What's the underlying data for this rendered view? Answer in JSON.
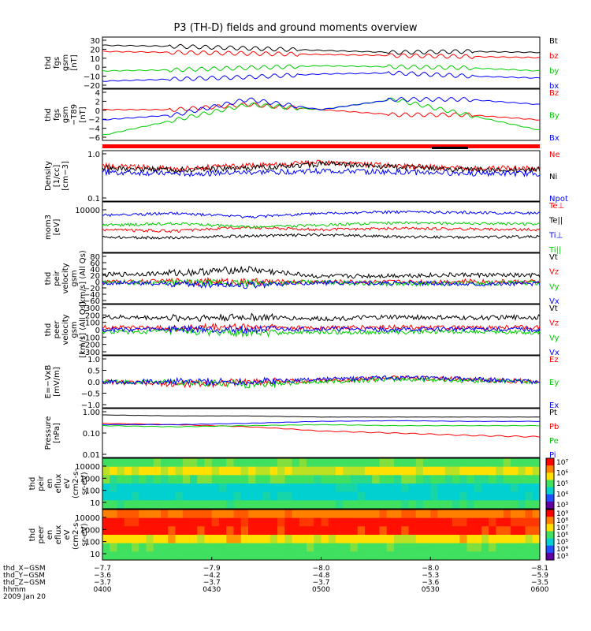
{
  "title": "P3 (TH-D) fields and ground moments overview",
  "colors": {
    "black": "#000000",
    "red": "#ff0000",
    "green": "#00cc00",
    "blue": "#0000ff"
  },
  "chart_data": [
    {
      "id": "fgs",
      "type": "line",
      "ylabel": [
        "thd",
        "fgs",
        "gsm",
        "[nT]"
      ],
      "yticks": [
        "30",
        "20",
        "10",
        "0",
        "−10",
        "−20"
      ],
      "ylim": [
        -20,
        30
      ],
      "legend": [
        {
          "name": "Bt",
          "color": "black"
        },
        {
          "name": "bz",
          "color": "red"
        },
        {
          "name": "by",
          "color": "green"
        },
        {
          "name": "bx",
          "color": "blue"
        }
      ],
      "series": [
        {
          "name": "Bt",
          "levels": [
            22,
            21,
            19,
            17,
            15,
            16,
            15
          ]
        },
        {
          "name": "bz",
          "levels": [
            16,
            15,
            14,
            13,
            12,
            11,
            10
          ]
        },
        {
          "name": "by",
          "levels": [
            -3,
            -2,
            0,
            2,
            1,
            0,
            -3
          ]
        },
        {
          "name": "bx",
          "levels": [
            -13,
            -11,
            -9,
            -6,
            -5,
            -8,
            -10
          ]
        }
      ]
    },
    {
      "id": "t89",
      "type": "line",
      "ylabel": [
        "thd",
        "fgs",
        "gsm",
        "−T89",
        "[nT]"
      ],
      "yticks": [
        "4",
        "2",
        "0",
        "−2",
        "−4",
        "−6"
      ],
      "ylim": [
        -6,
        4
      ],
      "legend": [
        {
          "name": "Bz",
          "color": "red"
        },
        {
          "name": "By",
          "color": "green"
        },
        {
          "name": "Bx",
          "color": "blue"
        }
      ],
      "series": [
        {
          "name": "Bz",
          "levels": [
            0,
            0,
            1,
            0,
            -1,
            -1,
            -2
          ]
        },
        {
          "name": "By",
          "levels": [
            -5,
            -2,
            1,
            0,
            2,
            -1,
            -4
          ]
        },
        {
          "name": "Bx",
          "levels": [
            -2,
            -1,
            2,
            0,
            2,
            2,
            1
          ]
        }
      ]
    },
    {
      "id": "density",
      "type": "line",
      "ylabel": [
        "Density",
        "[1/cc]",
        "[cm−3]"
      ],
      "yticks": [
        "1.0",
        "0.1"
      ],
      "ylim": [
        0.1,
        1.0
      ],
      "log": true,
      "legend": [
        {
          "name": "Ne",
          "color": "red"
        },
        {
          "name": "Ni",
          "color": "black"
        },
        {
          "name": "Npot",
          "color": "blue"
        }
      ],
      "series": [
        {
          "name": "Ne",
          "levels": [
            0.5,
            0.45,
            0.5,
            0.58,
            0.5,
            0.45,
            0.45
          ]
        },
        {
          "name": "Ni",
          "levels": [
            0.45,
            0.42,
            0.45,
            0.55,
            0.48,
            0.42,
            0.42
          ]
        },
        {
          "name": "Npot",
          "levels": [
            0.38,
            0.35,
            0.37,
            0.4,
            0.38,
            0.36,
            0.35
          ]
        }
      ]
    },
    {
      "id": "mom_t",
      "type": "line",
      "ylabel": [
        "mom3",
        "[eV]"
      ],
      "yticks": [
        "10000"
      ],
      "ylim": [
        100,
        10000
      ],
      "log": true,
      "legend": [
        {
          "name": "Te⊥",
          "color": "red"
        },
        {
          "name": "Te||",
          "color": "black"
        },
        {
          "name": "Ti⊥",
          "color": "blue"
        },
        {
          "name": "Ti||",
          "color": "green"
        }
      ],
      "series": [
        {
          "name": "Te⊥",
          "levels": [
            800,
            700,
            1000,
            800,
            900,
            850,
            800
          ]
        },
        {
          "name": "Te||",
          "levels": [
            400,
            380,
            450,
            500,
            420,
            400,
            420
          ]
        },
        {
          "name": "Ti⊥",
          "levels": [
            3000,
            3500,
            2500,
            3500,
            4000,
            3800,
            3600
          ]
        },
        {
          "name": "Ti||",
          "levels": [
            1200,
            1400,
            1000,
            1200,
            1500,
            1400,
            1300
          ]
        }
      ]
    },
    {
      "id": "peir_v",
      "type": "line",
      "ylabel": [
        "thd",
        "peir",
        "velocity",
        "gsm",
        "[km/s] (All Qs)"
      ],
      "yticks": [
        "80",
        "60",
        "40",
        "20",
        "0",
        "−20",
        "−40",
        "−60"
      ],
      "ylim": [
        -60,
        80
      ],
      "legend": [
        {
          "name": "Vt",
          "color": "black"
        },
        {
          "name": "Vz",
          "color": "red"
        },
        {
          "name": "Vy",
          "color": "green"
        },
        {
          "name": "Vx",
          "color": "blue"
        }
      ],
      "series": [
        {
          "name": "Vt",
          "levels": [
            20,
            25,
            35,
            15,
            18,
            20,
            18
          ]
        },
        {
          "name": "Vz",
          "levels": [
            0,
            2,
            0,
            1,
            0,
            2,
            0
          ]
        },
        {
          "name": "Vy",
          "levels": [
            0,
            -2,
            -4,
            0,
            -5,
            -3,
            -2
          ]
        },
        {
          "name": "Vx",
          "levels": [
            -2,
            -5,
            -8,
            -2,
            -3,
            -5,
            -4
          ]
        }
      ]
    },
    {
      "id": "peer_v",
      "type": "line",
      "ylabel": [
        "thd",
        "peer",
        "velocity",
        "gsm",
        "[km/s] (All Qs)"
      ],
      "yticks": [
        "300",
        "200",
        "100",
        "0",
        "−100",
        "−200",
        "−300"
      ],
      "ylim": [
        -300,
        300
      ],
      "legend": [
        {
          "name": "Vt",
          "color": "black"
        },
        {
          "name": "Vz",
          "color": "red"
        },
        {
          "name": "Vy",
          "color": "green"
        },
        {
          "name": "Vx",
          "color": "blue"
        }
      ],
      "series": [
        {
          "name": "Vt",
          "levels": [
            150,
            140,
            150,
            130,
            150,
            140,
            150
          ]
        },
        {
          "name": "Vz",
          "levels": [
            30,
            20,
            30,
            20,
            30,
            20,
            30
          ]
        },
        {
          "name": "Vy",
          "levels": [
            -30,
            -20,
            -40,
            -30,
            -30,
            -20,
            -30
          ]
        },
        {
          "name": "Vx",
          "levels": [
            0,
            10,
            0,
            10,
            0,
            10,
            0
          ]
        }
      ]
    },
    {
      "id": "efield",
      "type": "line",
      "ylabel": [
        "E=−VxB",
        "[mV/m]"
      ],
      "yticks": [
        "1.0",
        "0.5",
        "0.0",
        "−0.5",
        "−1.0"
      ],
      "ylim": [
        -1,
        1
      ],
      "legend": [
        {
          "name": "Ez",
          "color": "red"
        },
        {
          "name": "Ey",
          "color": "green"
        },
        {
          "name": "Ex",
          "color": "blue"
        }
      ],
      "series": [
        {
          "name": "Ez",
          "levels": [
            0,
            -0.1,
            0,
            0.05,
            0.15,
            0.1,
            0
          ]
        },
        {
          "name": "Ey",
          "levels": [
            0,
            0,
            -0.1,
            0,
            0.1,
            0.05,
            0
          ]
        },
        {
          "name": "Ex",
          "levels": [
            0,
            0,
            0,
            0.1,
            0.15,
            0.1,
            0
          ]
        }
      ]
    },
    {
      "id": "pressure",
      "type": "line",
      "ylabel": [
        "Pressure",
        "[nPa]"
      ],
      "yticks": [
        "1.00",
        "0.10",
        "0.01"
      ],
      "ylim": [
        0.01,
        1.0
      ],
      "log": true,
      "legend": [
        {
          "name": "Pt",
          "color": "black"
        },
        {
          "name": "Pb",
          "color": "red"
        },
        {
          "name": "Pe",
          "color": "green"
        },
        {
          "name": "Pi",
          "color": "blue"
        }
      ],
      "series": [
        {
          "name": "Pt",
          "levels": [
            0.55,
            0.5,
            0.5,
            0.45,
            0.45,
            0.45,
            0.45
          ]
        },
        {
          "name": "Pb",
          "levels": [
            0.25,
            0.22,
            0.18,
            0.12,
            0.1,
            0.08,
            0.07
          ]
        },
        {
          "name": "Pe",
          "levels": [
            0.2,
            0.18,
            0.2,
            0.22,
            0.2,
            0.2,
            0.2
          ]
        },
        {
          "name": "Pi",
          "levels": [
            0.22,
            0.22,
            0.25,
            0.3,
            0.32,
            0.3,
            0.3
          ]
        }
      ]
    },
    {
      "id": "peir_spec",
      "type": "heatmap",
      "ylabel": [
        "thd",
        "peir",
        "en",
        "eflux",
        "eV",
        "(cm2-s-",
        "sr-eV)"
      ],
      "yticks": [
        "10000",
        "1000",
        "100",
        "10"
      ],
      "ylim": [
        5,
        30000
      ],
      "log": true,
      "colorbar": [
        "10⁷",
        "10⁶",
        "10⁵",
        "10⁴",
        "10³"
      ],
      "bands": [
        "green",
        "yellow",
        "green",
        "cyan",
        "cyan",
        "green"
      ]
    },
    {
      "id": "peer_spec",
      "type": "heatmap",
      "ylabel": [
        "thd",
        "peer",
        "en",
        "eflux",
        "eV",
        "(cm2-s-",
        "sr-eV)"
      ],
      "yticks": [
        "10000",
        "1000",
        "100",
        "10"
      ],
      "ylim": [
        5,
        30000
      ],
      "log": true,
      "colorbar": [
        "10⁹",
        "10⁸",
        "10⁷",
        "10⁶",
        "10⁵",
        "10⁴",
        "10³"
      ],
      "bands": [
        "orange",
        "red",
        "red",
        "yellow",
        "green",
        "green"
      ]
    }
  ],
  "ephemeris": {
    "rows": [
      {
        "label": "thd_X−GSM",
        "values": [
          "−7.7",
          "−7.9",
          "−8.0",
          "−8.0",
          "−8.1"
        ]
      },
      {
        "label": "thd_Y−GSM",
        "values": [
          "−3.6",
          "−4.2",
          "−4.8",
          "−5.3",
          "−5.9"
        ]
      },
      {
        "label": "thd_Z−GSM",
        "values": [
          "−3.7",
          "−3.7",
          "−3.7",
          "−3.6",
          "−3.5"
        ]
      },
      {
        "label": "hhmm",
        "values": [
          "0400",
          "0430",
          "0500",
          "0530",
          "0600"
        ]
      }
    ],
    "date": "2009 Jan 20"
  }
}
